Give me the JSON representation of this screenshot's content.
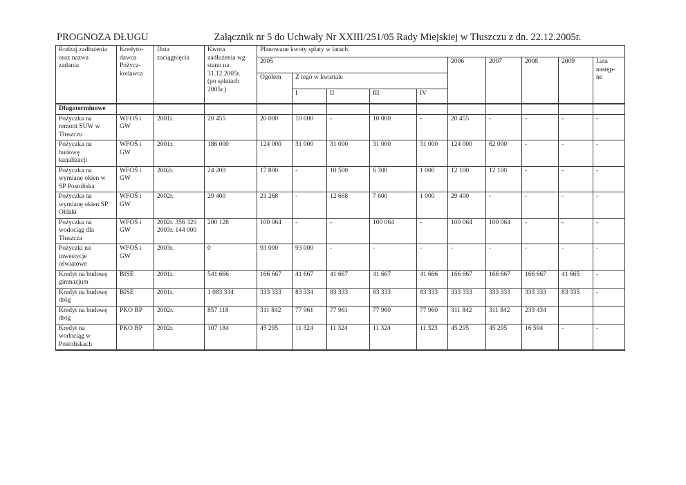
{
  "page": {
    "title": "PROGNOZA DŁUGU",
    "attachment_note": "Załącznik nr 5 do Uchwały Nr XXIII/251/05  Rady Miejskiej w Tłuszczu z dn. 22.12.2005r."
  },
  "table": {
    "headers": {
      "rodzaj": "Rodzaj zadłużenia\noraz nazwa\nzadania",
      "kredytodawca": "Kredyto-\ndawca\nPożycz-\nkodawca",
      "data": "Data\nzaciągnięcia",
      "kwota": "Kwota\nzadłużenia wg\nstanu na\n31.12.2005r.\n(po spłatach\n2005r.)",
      "planowane": "Planowane kwoty spłaty w latach",
      "y2005": "2005",
      "ogolem": "Ogółem",
      "kwartale": "Z tego w kwartale",
      "q1": "I",
      "q2": "II",
      "q3": "III",
      "q4": "IV",
      "y2006": "2006",
      "y2007": "2007",
      "y2008": "2008",
      "y2009": "2009",
      "lata": "Lata\nnastęp-\nne"
    },
    "section_row": {
      "label": "Długoterminowe",
      "empty_cells": 13
    },
    "rows": [
      {
        "cells": [
          "Pożyczka na\nremont SUW w\nTłuszczu",
          "WFOŚ i\nGW",
          "2001r.",
          "20 455",
          "20 000",
          "10 000",
          "-",
          "10 000",
          "-",
          "20 455",
          "-",
          "-",
          "-",
          "-"
        ]
      },
      {
        "cells": [
          "Pożyczka na\nbudowę\nkanalizacji",
          "WFOŚ i\nGW",
          "2001r.",
          "186 000",
          "124 000",
          "31 000",
          "31 000",
          "31 000",
          "31 000",
          "124 000",
          "62 000",
          "-",
          "-",
          "-"
        ]
      },
      {
        "cells": [
          "Pożyczka na\nwymianę okien w\nSP Postoliska",
          "WFOŚ i\nGW",
          "2002r.",
          "24 200",
          "17 800",
          "-",
          "10 500",
          "6 300",
          "1 000",
          "12 100",
          "12 100",
          "-",
          "-",
          "-"
        ]
      },
      {
        "cells": [
          "Pożyczka na\nwymianę okien SP\nOłdaki",
          "WFOŚ i\nGW",
          "2002r.",
          "29 400",
          "21 268",
          "-",
          "12 668",
          "7 600",
          "1 000",
          "29 400",
          "-",
          "-",
          "-",
          "-"
        ]
      },
      {
        "cells": [
          "Pożyczka na\nwodociąg dla\nTłuszcza",
          "WFOŚ i\nGW",
          "2002r. 356 320\n2003r. 144 000",
          "200 128",
          "100 064",
          "-",
          "-",
          "100 064",
          "-",
          "100 064",
          "100 064",
          "-",
          "-",
          "-"
        ]
      },
      {
        "cells": [
          "Pożyczki na\ninwestycje\noświatowe",
          "WFOŚ i\nGW",
          "2003r.",
          "0",
          "93 000",
          "93 000",
          "-",
          "-",
          "-",
          "-",
          "-",
          "-",
          "-",
          "-"
        ]
      },
      {
        "cells": [
          "Kredyt na budowę\ngimnazjum",
          "BISE",
          "2001r.",
          "541 666",
          "166 667",
          "41 667",
          "41 667",
          "41 667",
          "41 666",
          "166 667",
          "166 667",
          "166 667",
          "41 665",
          "-"
        ]
      },
      {
        "cells": [
          "Kredyt na budowę\ndróg",
          "BISE",
          "2001r.",
          "1 083 334",
          "333 333",
          "83 334",
          "83 333",
          "83 333",
          "83 333",
          "333 333",
          "333 333",
          "333 333",
          "83 335",
          "-"
        ]
      },
      {
        "cells": [
          "Kredyt na budowę\ndróg",
          "PKO BP",
          "2002r.",
          "857 118",
          "311 842",
          "77 961",
          "77 961",
          "77 960",
          "77 960",
          "311 842",
          "311 842",
          "233 434",
          "",
          ""
        ]
      },
      {
        "cells": [
          "Kredyt na\nwodociąg w\nPostoliskach",
          "PKO BP",
          "2002r.",
          "107 184",
          "45 295",
          "11 324",
          "11 324",
          "11 324",
          "11 323",
          "45 295",
          "45 295",
          "16 594",
          "-",
          "-"
        ]
      }
    ]
  }
}
